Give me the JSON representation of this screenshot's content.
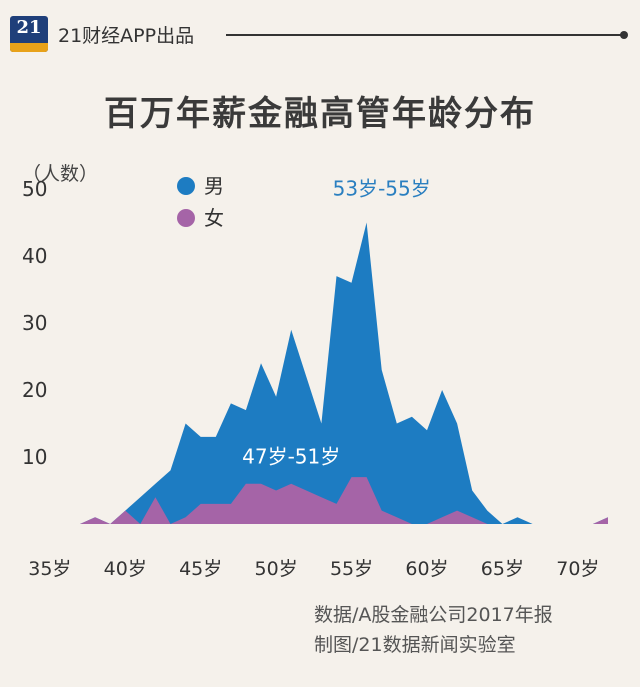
{
  "header": {
    "logo_text": "21",
    "brand": "21财经APP出品"
  },
  "chart_data": {
    "type": "area",
    "title": "百万年薪金融高管年龄分布",
    "ylabel": "（人数）",
    "xlabel": "",
    "ylim": [
      0,
      50
    ],
    "y_ticks": [
      10,
      20,
      30,
      40,
      50
    ],
    "x_ticks": [
      {
        "value": 35,
        "label": "35岁"
      },
      {
        "value": 40,
        "label": "40岁"
      },
      {
        "value": 45,
        "label": "45岁"
      },
      {
        "value": 50,
        "label": "50岁"
      },
      {
        "value": 55,
        "label": "55岁"
      },
      {
        "value": 60,
        "label": "60岁"
      },
      {
        "value": 65,
        "label": "65岁"
      },
      {
        "value": 70,
        "label": "70岁"
      }
    ],
    "x": [
      37,
      38,
      39,
      40,
      41,
      42,
      43,
      44,
      45,
      46,
      47,
      48,
      49,
      50,
      51,
      52,
      53,
      54,
      55,
      56,
      57,
      58,
      59,
      60,
      61,
      62,
      63,
      64,
      65,
      66,
      67,
      68,
      69,
      70,
      71,
      72
    ],
    "series": [
      {
        "name": "男",
        "color": "#1d7cc2",
        "values": [
          0,
          1,
          0,
          2,
          4,
          6,
          8,
          15,
          13,
          13,
          18,
          17,
          24,
          19,
          29,
          22,
          15,
          37,
          36,
          45,
          23,
          15,
          16,
          14,
          20,
          15,
          5,
          2,
          0,
          1,
          0,
          0,
          0,
          0,
          0,
          1
        ]
      },
      {
        "name": "女",
        "color": "#a564a7",
        "values": [
          0,
          1,
          0,
          2,
          0,
          4,
          0,
          1,
          3,
          3,
          3,
          6,
          6,
          5,
          6,
          5,
          4,
          3,
          7,
          7,
          2,
          1,
          0,
          0,
          1,
          2,
          1,
          0,
          0,
          0,
          0,
          0,
          0,
          0,
          0,
          1
        ]
      }
    ],
    "annotations": [
      {
        "text": "53岁-55岁",
        "x": 57,
        "y": 49,
        "color": "#2a7fc0"
      },
      {
        "text": "47岁-51岁",
        "x": 51,
        "y": 9,
        "color": "#ffffff"
      }
    ],
    "legend_position": "top-left",
    "grid": false
  },
  "footnote": {
    "line1": "数据/A股金融公司2017年报",
    "line2": "制图/21数据新闻实验室"
  }
}
